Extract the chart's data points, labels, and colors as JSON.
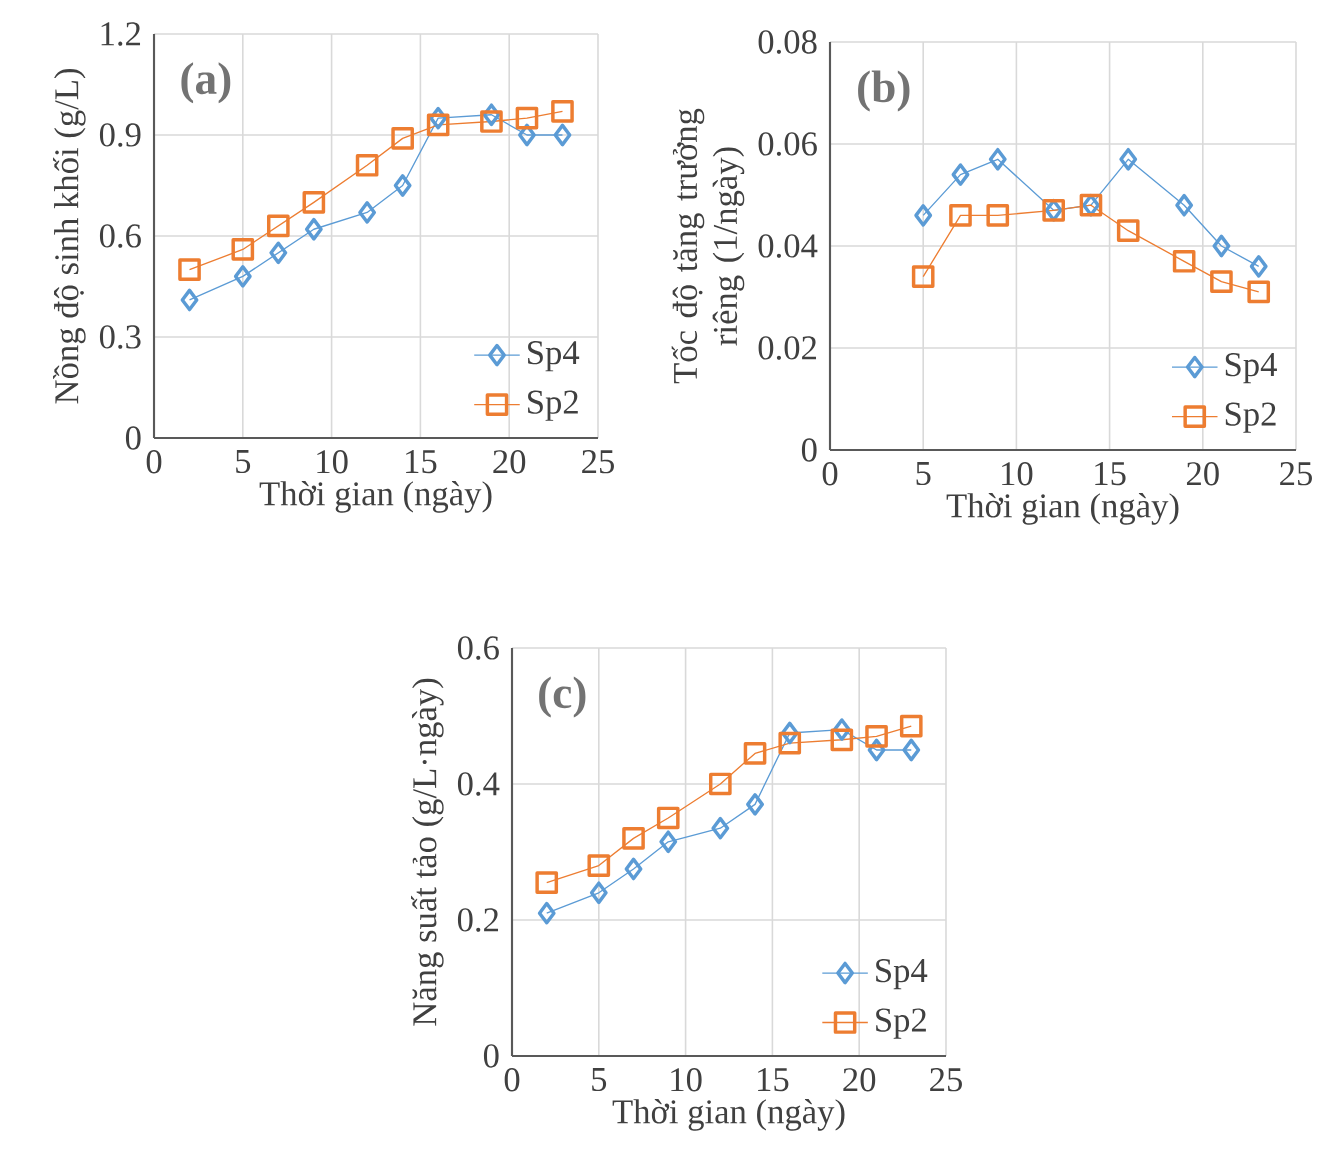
{
  "chart_data": [
    {
      "type": "line",
      "annotations": [
        "(a)"
      ],
      "xlabel": "Thời gian (ngày)",
      "ylabel": "Nồng độ sinh khối (g/L)",
      "xlim": [
        0,
        25
      ],
      "xticks": [
        0,
        5,
        10,
        15,
        20,
        25
      ],
      "ylim": [
        0,
        1.2
      ],
      "yticks": [
        0,
        0.3,
        0.6,
        0.9,
        1.2
      ],
      "grid": true,
      "legend": "bottom right",
      "x": [
        2,
        5,
        7,
        9,
        12,
        14,
        16,
        19,
        21,
        23
      ],
      "series": [
        {
          "name": "Sp4",
          "color": "#5b9bd5",
          "marker": "diamond",
          "values": [
            0.41,
            0.48,
            0.55,
            0.62,
            0.67,
            0.75,
            0.95,
            0.96,
            0.9,
            0.9
          ]
        },
        {
          "name": "Sp2",
          "color": "#ed7d31",
          "marker": "square",
          "values": [
            0.5,
            0.56,
            0.63,
            0.7,
            0.81,
            0.89,
            0.93,
            0.94,
            0.95,
            0.97
          ]
        }
      ]
    },
    {
      "type": "line",
      "annotations": [
        "(b)"
      ],
      "xlabel": "Thời gian (ngày)",
      "ylabel": "Tốc độ tăng trưởng riêng (1/ngày)",
      "xlim": [
        0,
        25
      ],
      "xticks": [
        0,
        5,
        10,
        15,
        20,
        25
      ],
      "ylim": [
        0,
        0.08
      ],
      "yticks": [
        0,
        0.02,
        0.04,
        0.06,
        0.08
      ],
      "grid": true,
      "legend": "bottom right",
      "x": [
        5,
        7,
        9,
        12,
        14,
        16,
        19,
        21,
        23
      ],
      "series": [
        {
          "name": "Sp4",
          "color": "#5b9bd5",
          "marker": "diamond",
          "values": [
            0.046,
            0.054,
            0.057,
            0.047,
            0.048,
            0.057,
            0.048,
            0.04,
            0.036
          ]
        },
        {
          "name": "Sp2",
          "color": "#ed7d31",
          "marker": "square",
          "values": [
            0.034,
            0.046,
            0.046,
            0.047,
            0.048,
            0.043,
            0.037,
            0.033,
            0.031
          ]
        }
      ]
    },
    {
      "type": "line",
      "annotations": [
        "(c)"
      ],
      "xlabel": "Thời gian (ngày)",
      "ylabel": "Năng suất tảo (g/L·ngày)",
      "xlim": [
        0,
        25
      ],
      "xticks": [
        0,
        5,
        10,
        15,
        20,
        25
      ],
      "ylim": [
        0,
        0.6
      ],
      "yticks": [
        0,
        0.2,
        0.4,
        0.6
      ],
      "grid": true,
      "legend": "bottom right",
      "x": [
        2,
        5,
        7,
        9,
        12,
        14,
        16,
        19,
        21,
        23
      ],
      "series": [
        {
          "name": "Sp4",
          "color": "#5b9bd5",
          "marker": "diamond",
          "values": [
            0.21,
            0.24,
            0.275,
            0.315,
            0.335,
            0.37,
            0.475,
            0.48,
            0.45,
            0.45
          ]
        },
        {
          "name": "Sp2",
          "color": "#ed7d31",
          "marker": "square",
          "values": [
            0.255,
            0.28,
            0.32,
            0.35,
            0.4,
            0.445,
            0.46,
            0.465,
            0.47,
            0.485
          ]
        }
      ]
    }
  ]
}
